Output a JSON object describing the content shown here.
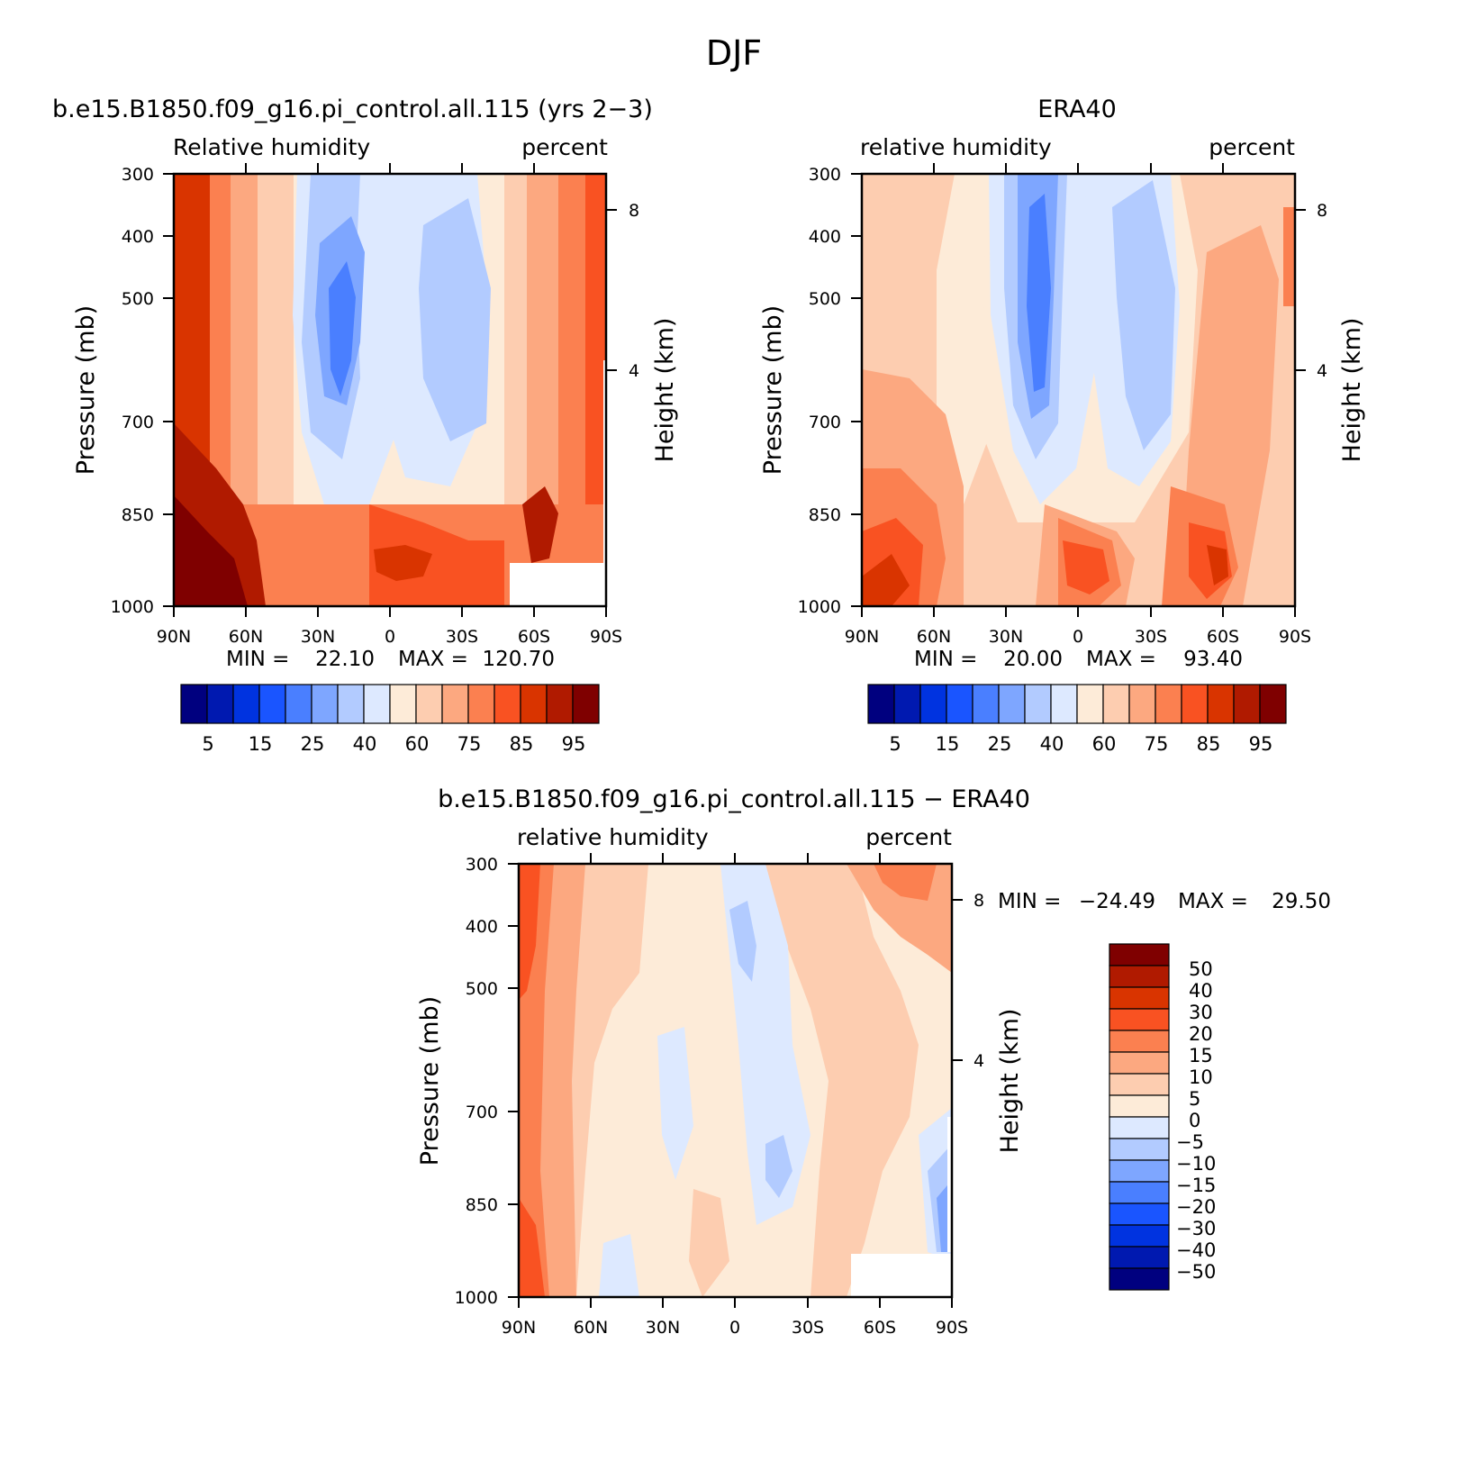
{
  "figure_title": "DJF",
  "chart_data": [
    {
      "type": "heatmap",
      "id": "model",
      "title": "b.e15.B1850.f09_g16.pi_control.all.115 (yrs 2-3)",
      "left_label": "Relative humidity",
      "right_label": "percent",
      "ylabel": "Pressure (mb)",
      "ylabel_right": "Height (km)",
      "xticks": [
        "90N",
        "60N",
        "30N",
        "0",
        "30S",
        "60S",
        "90S"
      ],
      "yticks": [
        "300",
        "400",
        "500",
        "700",
        "850",
        "1000"
      ],
      "yticks_right": [
        "8",
        "4"
      ],
      "xlim": [
        90,
        -90
      ],
      "ylim": [
        1000,
        300
      ],
      "min_label": "MIN =",
      "min_value": "22.10",
      "max_label": "MAX =",
      "max_value": "120.70",
      "colorbar_labels": [
        "5",
        "15",
        "25",
        "40",
        "60",
        "75",
        "85",
        "95"
      ],
      "palette": [
        "#00007f",
        "#0019b0",
        "#0033e0",
        "#1a55ff",
        "#4a7fff",
        "#7ea6ff",
        "#b2cbff",
        "#dde9ff",
        "#fdebd8",
        "#fdcdb0",
        "#fca880",
        "#fb8050",
        "#f95222",
        "#d93400",
        "#b01a00",
        "#7f0000"
      ],
      "bounds": [
        5,
        10,
        15,
        20,
        25,
        30,
        40,
        50,
        60,
        70,
        75,
        80,
        85,
        90,
        95
      ]
    },
    {
      "type": "heatmap",
      "id": "obs",
      "title": "ERA40",
      "left_label": "relative humidity",
      "right_label": "percent",
      "ylabel": "Pressure (mb)",
      "ylabel_right": "Height (km)",
      "xticks": [
        "90N",
        "60N",
        "30N",
        "0",
        "30S",
        "60S",
        "90S"
      ],
      "yticks": [
        "300",
        "400",
        "500",
        "700",
        "850",
        "1000"
      ],
      "yticks_right": [
        "8",
        "4"
      ],
      "xlim": [
        90,
        -90
      ],
      "ylim": [
        1000,
        300
      ],
      "min_label": "MIN =",
      "min_value": "20.00",
      "max_label": "MAX =",
      "max_value": "93.40",
      "colorbar_labels": [
        "5",
        "15",
        "25",
        "40",
        "60",
        "75",
        "85",
        "95"
      ],
      "palette": [
        "#00007f",
        "#0019b0",
        "#0033e0",
        "#1a55ff",
        "#4a7fff",
        "#7ea6ff",
        "#b2cbff",
        "#dde9ff",
        "#fdebd8",
        "#fdcdb0",
        "#fca880",
        "#fb8050",
        "#f95222",
        "#d93400",
        "#b01a00",
        "#7f0000"
      ],
      "bounds": [
        5,
        10,
        15,
        20,
        25,
        30,
        40,
        50,
        60,
        70,
        75,
        80,
        85,
        90,
        95
      ]
    },
    {
      "type": "heatmap",
      "id": "diff",
      "title": "b.e15.B1850.f09_g16.pi_control.all.115 - ERA40",
      "left_label": "relative humidity",
      "right_label": "percent",
      "ylabel": "Pressure (mb)",
      "ylabel_right": "Height (km)",
      "xticks": [
        "90N",
        "60N",
        "30N",
        "0",
        "30S",
        "60S",
        "90S"
      ],
      "yticks": [
        "300",
        "400",
        "500",
        "700",
        "850",
        "1000"
      ],
      "yticks_right": [
        "8",
        "4"
      ],
      "xlim": [
        90,
        -90
      ],
      "ylim": [
        1000,
        300
      ],
      "min_label": "MIN =",
      "min_value": "-24.49",
      "max_label": "MAX =",
      "max_value": "29.50",
      "colorbar_labels": [
        "50",
        "40",
        "30",
        "20",
        "15",
        "10",
        "5",
        "0",
        "-5",
        "-10",
        "-15",
        "-20",
        "-30",
        "-40",
        "-50"
      ],
      "palette": [
        "#7f0000",
        "#b01a00",
        "#d93400",
        "#f95222",
        "#fb8050",
        "#fca880",
        "#fdcdb0",
        "#fdebd8",
        "#dde9ff",
        "#b2cbff",
        "#7ea6ff",
        "#4a7fff",
        "#1a55ff",
        "#0033e0",
        "#0019b0",
        "#00007f"
      ],
      "bounds": [
        50,
        40,
        30,
        20,
        15,
        10,
        5,
        0,
        -5,
        -10,
        -15,
        -20,
        -30,
        -40,
        -50
      ]
    }
  ]
}
